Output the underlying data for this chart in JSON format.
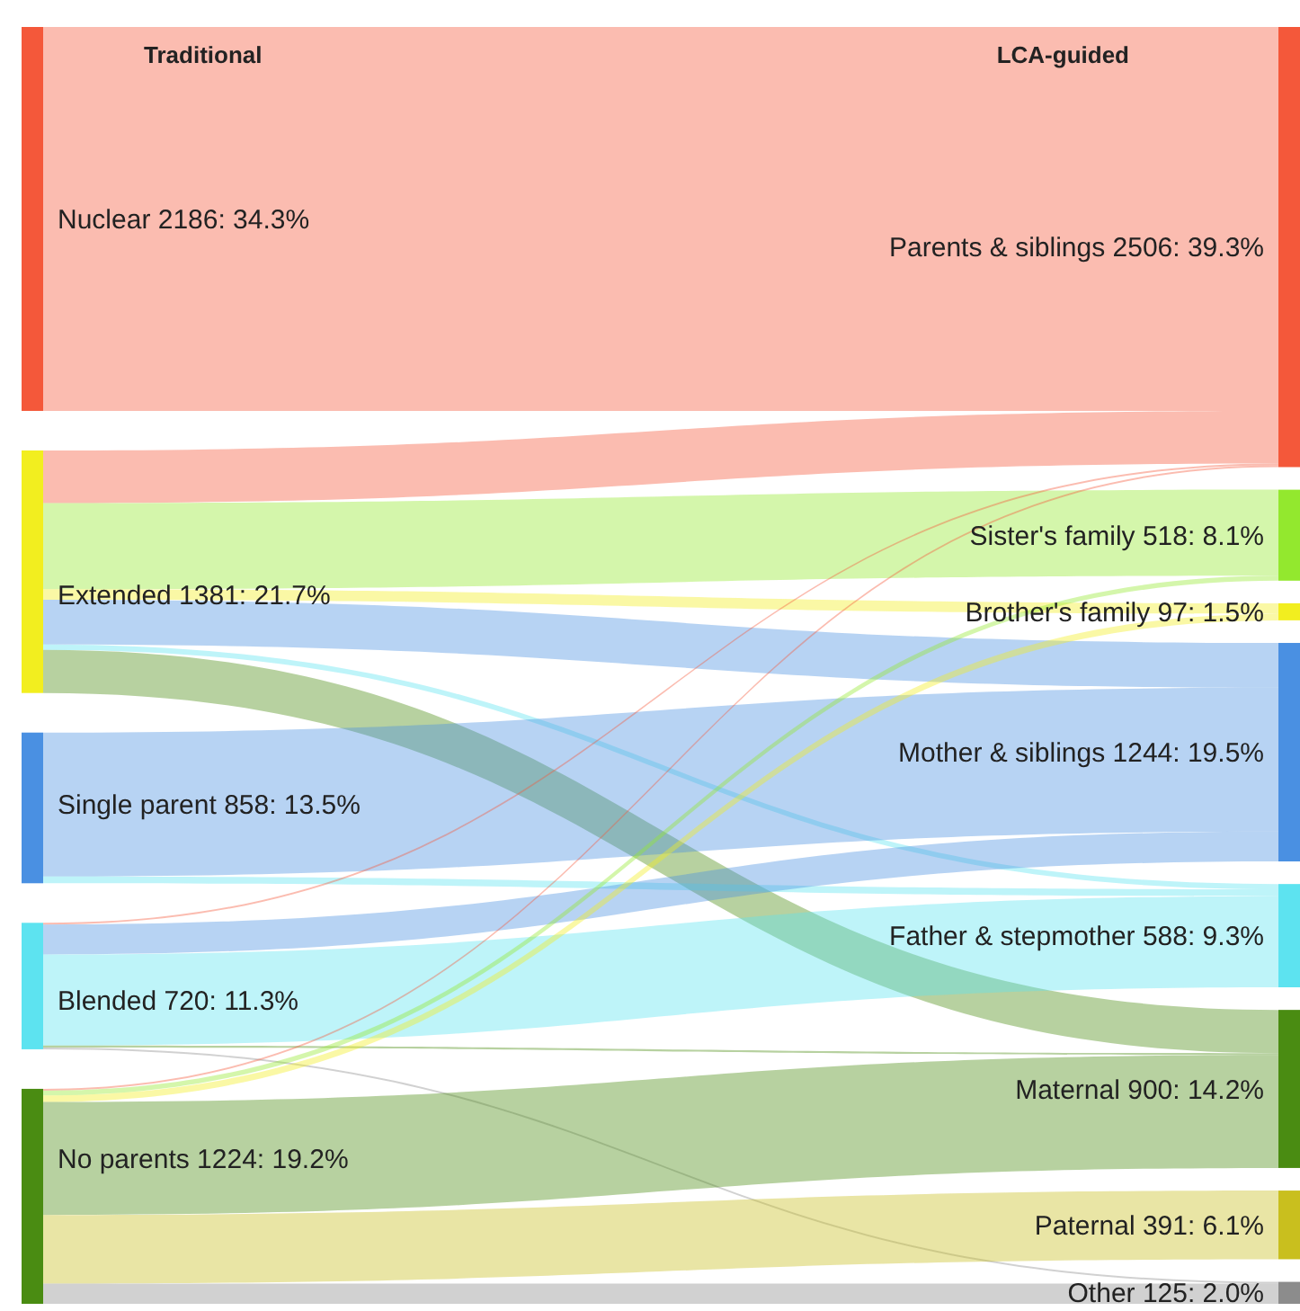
{
  "chart_data": [
    {
      "type": "other",
      "title": "Traditional",
      "categories": [
        "Nuclear",
        "Extended",
        "Single parent",
        "Blended",
        "No parents"
      ],
      "values": [
        2186,
        1381,
        858,
        720,
        1224
      ],
      "value_labels": [
        "2186: 34.3%",
        "1381: 21.7%",
        "858: 13.5%",
        "720: 11.3%",
        "1224: 19.2%"
      ],
      "colors": [
        "#f4583a",
        "#f2ee1f",
        "#4a90e2",
        "#5de3f0",
        "#4a8c12"
      ]
    },
    {
      "type": "other",
      "title": "LCA-guided",
      "categories": [
        "Parents & siblings",
        "Sister's family",
        "Brother's family",
        "Mother & siblings",
        "Father & stepmother",
        "Maternal",
        "Paternal",
        "Other"
      ],
      "values": [
        2506,
        518,
        97,
        1244,
        588,
        900,
        391,
        125
      ],
      "value_labels": [
        "2506: 39.3%",
        "518: 8.1%",
        "97: 1.5%",
        "1244: 19.5%",
        "588: 9.3%",
        "900: 14.2%",
        "391: 6.1%",
        "125: 2.0%"
      ],
      "colors": [
        "#f4583a",
        "#93e82e",
        "#f2ee1f",
        "#4a90e2",
        "#5de3f0",
        "#4a8c12",
        "#c9bf1e",
        "#8c8c8c"
      ]
    }
  ]
}
